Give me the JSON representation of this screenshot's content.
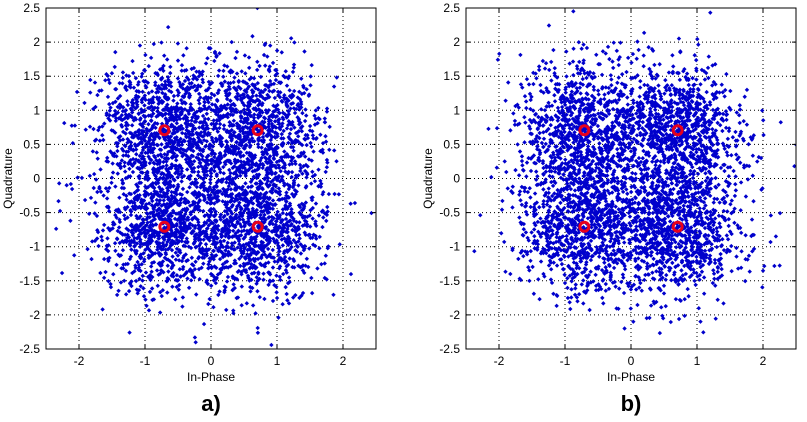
{
  "chart_data": [
    {
      "type": "scatter",
      "panel_label": "a)",
      "xlabel": "In-Phase",
      "ylabel": "Quadrature",
      "xlim": [
        -2.5,
        2.5
      ],
      "ylim": [
        -2.5,
        2.5
      ],
      "xticks": [
        -2,
        -1,
        0,
        1,
        2
      ],
      "yticks": [
        -2.5,
        -2,
        -1.5,
        -1,
        -0.5,
        0,
        0.5,
        1,
        1.5,
        2,
        2.5
      ],
      "xtick_labels": [
        "-2",
        "-1",
        "0",
        "1",
        "2"
      ],
      "ytick_labels": [
        "-2.5",
        "-2",
        "-1.5",
        "-1",
        "-0.5",
        "0",
        "0.5",
        "1",
        "1.5",
        "2",
        "2.5"
      ],
      "grid": true,
      "series": [
        {
          "kind": "received-symbols",
          "color": "#0000cc",
          "marker": "diamond",
          "count": 4000,
          "distribution": "gaussian-cloud around each QPSK point",
          "sigma": 0.5,
          "seed": 11
        },
        {
          "kind": "reference-constellation",
          "color": "#e8001c",
          "marker": "circle",
          "points": [
            [
              -0.707,
              0.707
            ],
            [
              0.707,
              0.707
            ],
            [
              -0.707,
              -0.707
            ],
            [
              0.707,
              -0.707
            ]
          ]
        }
      ]
    },
    {
      "type": "scatter",
      "panel_label": "b)",
      "xlabel": "In-Phase",
      "ylabel": "Quadrature",
      "xlim": [
        -2.5,
        2.5
      ],
      "ylim": [
        -2.5,
        2.5
      ],
      "xticks": [
        -2,
        -1,
        0,
        1,
        2
      ],
      "yticks": [
        -2.5,
        -2,
        -1.5,
        -1,
        -0.5,
        0,
        0.5,
        1,
        1.5,
        2,
        2.5
      ],
      "xtick_labels": [
        "-2",
        "-1",
        "0",
        "1",
        "2"
      ],
      "ytick_labels": [
        "-2.5",
        "-2",
        "-1.5",
        "-1",
        "-0.5",
        "0",
        "0.5",
        "1",
        "1.5",
        "2",
        "2.5"
      ],
      "grid": true,
      "series": [
        {
          "kind": "received-symbols",
          "color": "#0000cc",
          "marker": "diamond",
          "count": 4000,
          "distribution": "gaussian-cloud around each QPSK point",
          "sigma": 0.5,
          "seed": 29
        },
        {
          "kind": "reference-constellation",
          "color": "#e8001c",
          "marker": "circle",
          "points": [
            [
              -0.707,
              0.707
            ],
            [
              0.707,
              0.707
            ],
            [
              -0.707,
              -0.707
            ],
            [
              0.707,
              -0.707
            ]
          ]
        }
      ]
    }
  ]
}
